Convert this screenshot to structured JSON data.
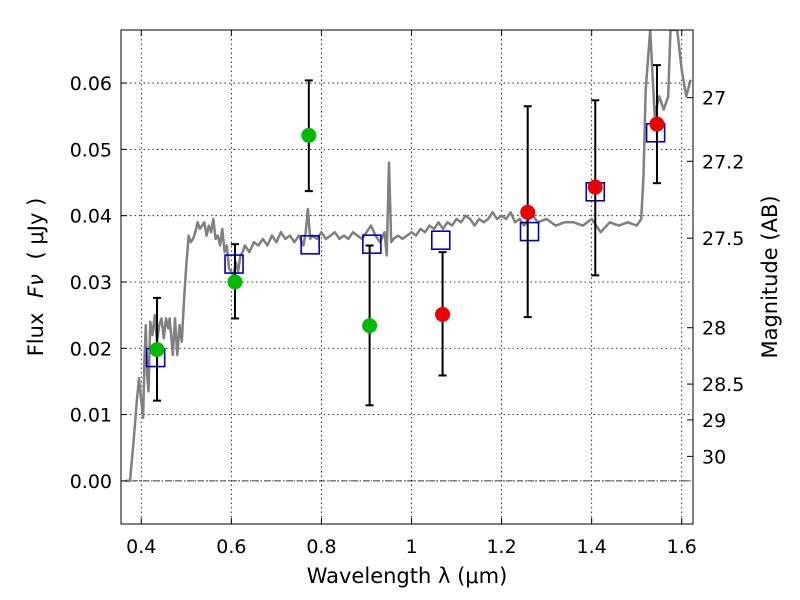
{
  "chart_data": {
    "type": "scatter",
    "xlabel": "Wavelength  λ (μm)",
    "ylabel_text": "Flux",
    "ylabel_math": "Fν",
    "ylabel_unit": "(  μJy  )",
    "y2label": "Magnitude (AB)",
    "xlim": [
      0.355,
      1.625
    ],
    "ylim": [
      -0.0065,
      0.068
    ],
    "x_ticks": [
      0.4,
      0.6,
      0.8,
      1.0,
      1.2,
      1.4,
      1.6
    ],
    "x_tick_labels": [
      "0.4",
      "0.6",
      "0.8",
      "1",
      "1.2",
      "1.4",
      "1.6"
    ],
    "y_ticks": [
      0.0,
      0.01,
      0.02,
      0.03,
      0.04,
      0.05,
      0.06
    ],
    "y_tick_labels": [
      "0.00",
      "0.01",
      "0.02",
      "0.03",
      "0.04",
      "0.05",
      "0.06"
    ],
    "y2_ticks": [
      {
        "label": "27",
        "flux": 0.0578
      },
      {
        "label": "27.2",
        "flux": 0.0482
      },
      {
        "label": "27.5",
        "flux": 0.0366
      },
      {
        "label": "28",
        "flux": 0.0231
      },
      {
        "label": "28.5",
        "flux": 0.0146
      },
      {
        "label": "29",
        "flux": 0.0092
      },
      {
        "label": "30",
        "flux": 0.0037
      }
    ],
    "grid": true,
    "model_spectrum": {
      "color": "#808080",
      "x": [
        0.365,
        0.375,
        0.383,
        0.39,
        0.395,
        0.4,
        0.404,
        0.407,
        0.41,
        0.413,
        0.416,
        0.42,
        0.425,
        0.43,
        0.435,
        0.44,
        0.445,
        0.45,
        0.455,
        0.46,
        0.463,
        0.467,
        0.47,
        0.475,
        0.48,
        0.485,
        0.49,
        0.495,
        0.5,
        0.505,
        0.51,
        0.515,
        0.52,
        0.525,
        0.53,
        0.535,
        0.54,
        0.545,
        0.55,
        0.555,
        0.56,
        0.565,
        0.57,
        0.575,
        0.58,
        0.585,
        0.59,
        0.595,
        0.6,
        0.605,
        0.61,
        0.615,
        0.62,
        0.625,
        0.63,
        0.64,
        0.65,
        0.66,
        0.67,
        0.68,
        0.69,
        0.7,
        0.71,
        0.72,
        0.73,
        0.74,
        0.75,
        0.76,
        0.765,
        0.77,
        0.775,
        0.78,
        0.79,
        0.8,
        0.81,
        0.82,
        0.83,
        0.84,
        0.85,
        0.86,
        0.87,
        0.88,
        0.89,
        0.9,
        0.91,
        0.92,
        0.93,
        0.94,
        0.945,
        0.95,
        0.955,
        0.96,
        0.97,
        0.98,
        0.99,
        1.0,
        1.01,
        1.02,
        1.03,
        1.04,
        1.05,
        1.06,
        1.07,
        1.08,
        1.09,
        1.1,
        1.11,
        1.12,
        1.13,
        1.14,
        1.15,
        1.16,
        1.17,
        1.18,
        1.19,
        1.2,
        1.21,
        1.22,
        1.23,
        1.24,
        1.25,
        1.26,
        1.27,
        1.28,
        1.3,
        1.32,
        1.34,
        1.36,
        1.38,
        1.4,
        1.42,
        1.44,
        1.46,
        1.48,
        1.5,
        1.51,
        1.515,
        1.52,
        1.53,
        1.54,
        1.55,
        1.56,
        1.57,
        1.575,
        1.58,
        1.585,
        1.59,
        1.6,
        1.61,
        1.62
      ],
      "y": [
        0.0,
        0.0,
        0.006,
        0.012,
        0.0155,
        0.012,
        0.0095,
        0.018,
        0.0235,
        0.016,
        0.0135,
        0.024,
        0.022,
        0.025,
        0.021,
        0.0235,
        0.0245,
        0.0215,
        0.0245,
        0.023,
        0.0245,
        0.0215,
        0.019,
        0.0245,
        0.019,
        0.0235,
        0.021,
        0.0275,
        0.0325,
        0.037,
        0.036,
        0.0365,
        0.0375,
        0.039,
        0.038,
        0.0385,
        0.039,
        0.037,
        0.0385,
        0.0375,
        0.0395,
        0.0365,
        0.037,
        0.0355,
        0.038,
        0.0345,
        0.0355,
        0.032,
        0.0315,
        0.031,
        0.033,
        0.0315,
        0.034,
        0.0345,
        0.0355,
        0.0345,
        0.036,
        0.0355,
        0.0365,
        0.0355,
        0.037,
        0.036,
        0.0375,
        0.0365,
        0.037,
        0.036,
        0.037,
        0.0355,
        0.0375,
        0.041,
        0.0365,
        0.037,
        0.0365,
        0.0375,
        0.0365,
        0.037,
        0.0375,
        0.0365,
        0.037,
        0.0365,
        0.0375,
        0.037,
        0.0365,
        0.0375,
        0.0385,
        0.037,
        0.036,
        0.0375,
        0.034,
        0.048,
        0.036,
        0.0365,
        0.037,
        0.0365,
        0.037,
        0.0375,
        0.037,
        0.038,
        0.0375,
        0.0385,
        0.038,
        0.039,
        0.038,
        0.039,
        0.0385,
        0.0395,
        0.039,
        0.04,
        0.0395,
        0.0385,
        0.0395,
        0.039,
        0.0395,
        0.0405,
        0.0395,
        0.04,
        0.0395,
        0.0405,
        0.039,
        0.0395,
        0.0385,
        0.0395,
        0.04,
        0.039,
        0.0395,
        0.0385,
        0.039,
        0.039,
        0.0385,
        0.0395,
        0.0375,
        0.039,
        0.0385,
        0.039,
        0.0385,
        0.0395,
        0.046,
        0.059,
        0.068,
        0.055,
        0.058,
        0.056,
        0.058,
        0.068,
        0.068,
        0.068,
        0.068,
        0.062,
        0.058,
        0.0605
      ]
    },
    "series": [
      {
        "marker": "open-square",
        "color": "#0000cc",
        "x": [
          0.432,
          0.606,
          0.775,
          0.912,
          1.065,
          1.262,
          1.408,
          1.542
        ],
        "y": [
          0.0186,
          0.0327,
          0.0356,
          0.0357,
          0.0363,
          0.0376,
          0.0436,
          0.0525
        ]
      },
      {
        "marker": "filled-circle",
        "color": "#00bb00",
        "x": [
          0.435,
          0.608,
          0.772,
          0.907
        ],
        "y": [
          0.0198,
          0.03,
          0.0521,
          0.0234
        ],
        "yerr_low": [
          0.0121,
          0.0245,
          0.0437,
          0.0114
        ],
        "yerr_high": [
          0.0276,
          0.0357,
          0.0604,
          0.0355
        ]
      },
      {
        "marker": "filled-circle",
        "color": "#ee0000",
        "x": [
          1.069,
          1.258,
          1.408,
          1.545
        ],
        "y": [
          0.0251,
          0.0405,
          0.0443,
          0.0538
        ],
        "yerr_low": [
          0.0159,
          0.0247,
          0.031,
          0.0449
        ],
        "yerr_high": [
          0.0345,
          0.0565,
          0.0574,
          0.0627
        ]
      }
    ]
  }
}
